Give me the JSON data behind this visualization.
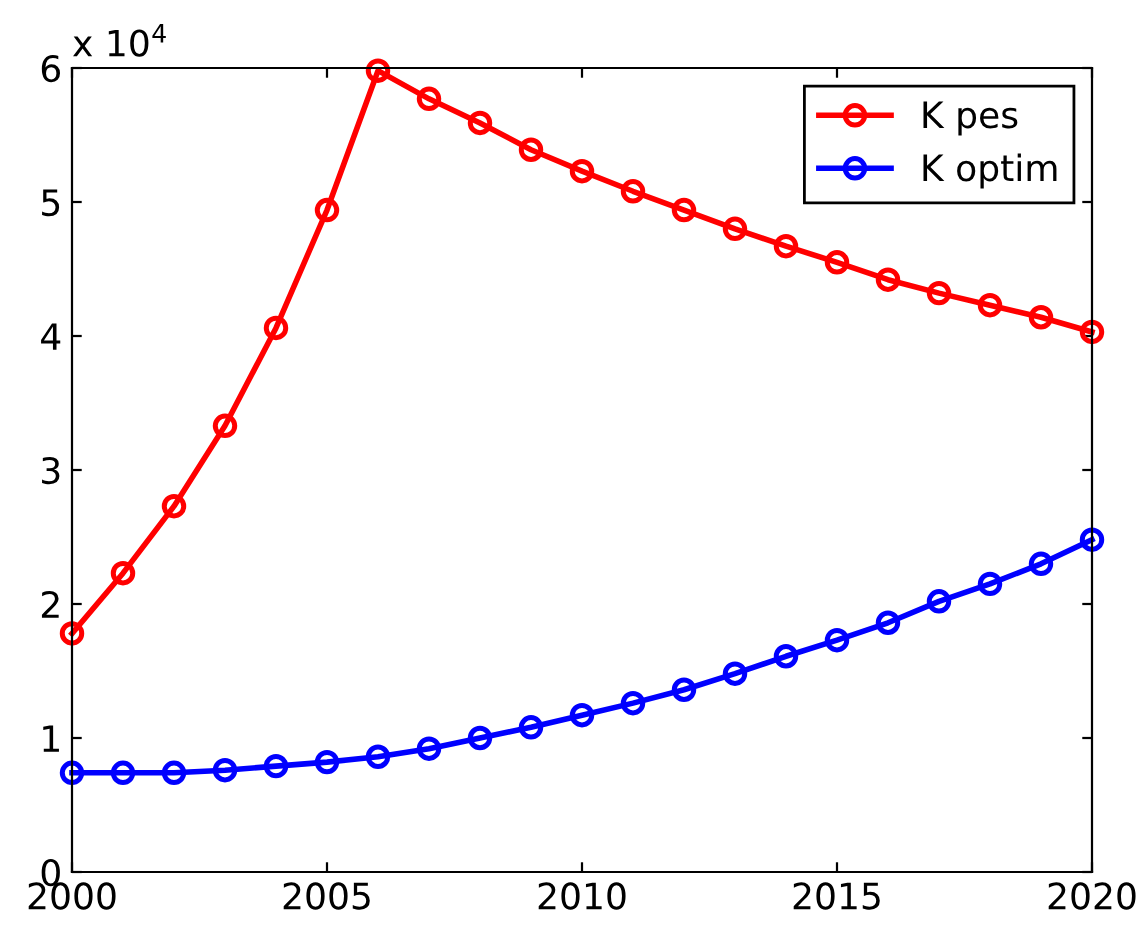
{
  "chart_data": {
    "type": "line",
    "x": [
      2000,
      2001,
      2002,
      2003,
      2004,
      2005,
      2006,
      2007,
      2008,
      2009,
      2010,
      2011,
      2012,
      2013,
      2014,
      2015,
      2016,
      2017,
      2018,
      2019,
      2020
    ],
    "series": [
      {
        "name": "K pes",
        "color": "#ff0000",
        "values": [
          1.78,
          2.23,
          2.73,
          3.33,
          4.06,
          4.94,
          5.98,
          5.77,
          5.59,
          5.39,
          5.23,
          5.08,
          4.94,
          4.8,
          4.67,
          4.55,
          4.42,
          4.32,
          4.23,
          4.14,
          4.03
        ]
      },
      {
        "name": "K optim",
        "color": "#0000ff",
        "values": [
          0.74,
          0.74,
          0.74,
          0.76,
          0.79,
          0.82,
          0.86,
          0.92,
          1.0,
          1.08,
          1.17,
          1.26,
          1.36,
          1.48,
          1.61,
          1.73,
          1.86,
          2.02,
          2.15,
          2.3,
          2.48
        ]
      }
    ],
    "xlim": [
      2000,
      2020
    ],
    "xticks": [
      2000,
      2005,
      2010,
      2015,
      2020
    ],
    "ylim": [
      0,
      6
    ],
    "yticks": [
      0,
      1,
      2,
      3,
      4,
      5,
      6
    ],
    "annotations": [
      "x 10$^{4}$"
    ],
    "legend": "top right",
    "grid": false,
    "marker": "circle",
    "line_style": "solid"
  }
}
